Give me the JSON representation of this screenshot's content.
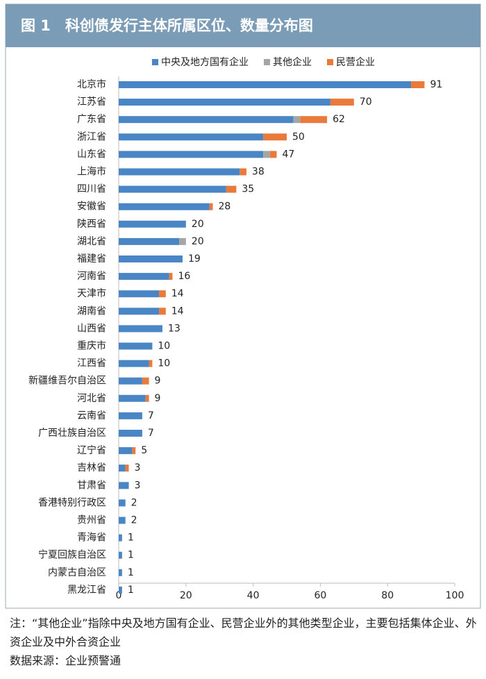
{
  "chart_data": {
    "type": "bar",
    "orientation": "horizontal",
    "stacked": true,
    "title": "图 1　科创债发行主体所属区位、数量分布图",
    "categories": [
      "北京市",
      "江苏省",
      "广东省",
      "浙江省",
      "山东省",
      "上海市",
      "四川省",
      "安徽省",
      "陕西省",
      "湖北省",
      "福建省",
      "河南省",
      "天津市",
      "湖南省",
      "山西省",
      "重庆市",
      "江西省",
      "新疆维吾尔自治区",
      "河北省",
      "云南省",
      "广西壮族自治区",
      "辽宁省",
      "吉林省",
      "甘肃省",
      "香港特别行政区",
      "贵州省",
      "青海省",
      "宁夏回族自治区",
      "内蒙古自治区",
      "黑龙江省"
    ],
    "series": [
      {
        "name": "中央及地方国有企业",
        "color": "#4a86c5",
        "values": [
          87,
          63,
          52,
          43,
          43,
          36,
          32,
          27,
          20,
          18,
          19,
          15,
          12,
          12,
          13,
          10,
          9,
          7,
          8,
          7,
          7,
          4,
          2,
          3,
          2,
          2,
          1,
          1,
          1,
          1
        ]
      },
      {
        "name": "其他企业",
        "color": "#a5a5a5",
        "values": [
          0,
          0,
          2,
          0,
          2,
          0,
          0,
          0,
          0,
          2,
          0,
          0,
          0,
          0,
          0,
          0,
          0,
          0,
          0,
          0,
          0,
          0,
          0,
          0,
          0,
          0,
          0,
          0,
          0,
          0
        ]
      },
      {
        "name": "民营企业",
        "color": "#e97a3c",
        "values": [
          4,
          7,
          8,
          7,
          2,
          2,
          3,
          1,
          0,
          0,
          0,
          1,
          2,
          2,
          0,
          0,
          1,
          2,
          1,
          0,
          0,
          1,
          1,
          0,
          0,
          0,
          0,
          0,
          0,
          0
        ]
      }
    ],
    "totals": [
      91,
      70,
      62,
      50,
      47,
      38,
      35,
      28,
      20,
      20,
      19,
      16,
      14,
      14,
      13,
      10,
      10,
      9,
      9,
      7,
      7,
      5,
      3,
      3,
      2,
      2,
      1,
      1,
      1,
      1
    ],
    "xlim": [
      0,
      100
    ],
    "xticks": [
      0,
      20,
      40,
      60,
      80,
      100
    ],
    "legend": "top"
  },
  "notes": [
    "注：“其他企业”指除中央及地方国有企业、民营企业外的其他类型企业，主要包括集体企业、外资企业及中外合资企业",
    "数据来源：企业预警通"
  ]
}
